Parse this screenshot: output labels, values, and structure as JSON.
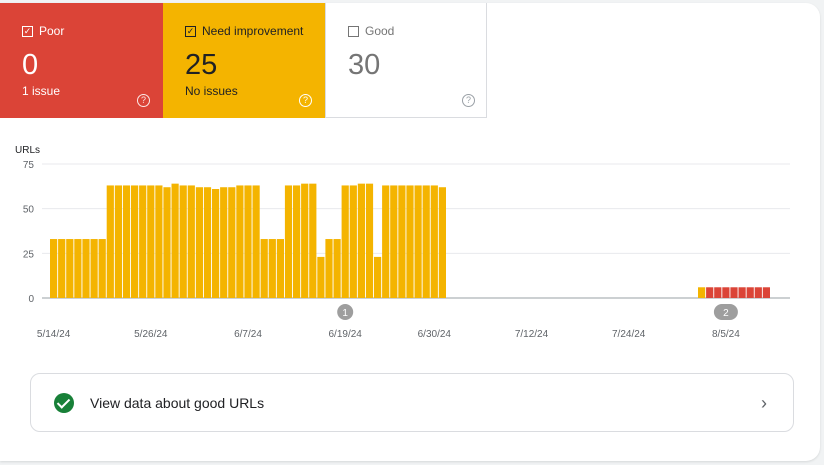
{
  "tiles": {
    "poor": {
      "label": "Poor",
      "count": "0",
      "sub": "1 issue",
      "checked": true
    },
    "need_improvement": {
      "label": "Need improvement",
      "count": "25",
      "sub": "No issues",
      "checked": true
    },
    "good": {
      "label": "Good",
      "count": "30",
      "sub": "",
      "checked": false
    }
  },
  "colors": {
    "poor": "#db4437",
    "need_improvement": "#f4b400",
    "good": "#ffffff",
    "annotation": "#9e9e9e",
    "good_check": "#188038"
  },
  "chart_data": {
    "type": "bar",
    "ylabel": "URLs",
    "ylim": [
      0,
      75
    ],
    "yticks": [
      0,
      25,
      50,
      75
    ],
    "xticks": [
      "5/14/24",
      "5/26/24",
      "6/7/24",
      "6/19/24",
      "6/30/24",
      "7/12/24",
      "7/24/24",
      "8/5/24"
    ],
    "start_date": "2024-05-14",
    "series": [
      {
        "name": "Need improvement",
        "color": "#f4b400",
        "start": "2024-05-14",
        "values": [
          33,
          33,
          33,
          33,
          33,
          33,
          33,
          63,
          63,
          63,
          63,
          63,
          63,
          63,
          62,
          64,
          63,
          63,
          62,
          62,
          61,
          62,
          62,
          63,
          63,
          63,
          33,
          33,
          33,
          63,
          63,
          64,
          64,
          23,
          33,
          33,
          63,
          63,
          64,
          64,
          23,
          63,
          63,
          63,
          63,
          63,
          63,
          63,
          62
        ]
      },
      {
        "name": "Need improvement",
        "color": "#f4b400",
        "start": "2024-08-02",
        "values": [
          6
        ]
      },
      {
        "name": "Poor",
        "color": "#db4437",
        "start": "2024-08-03",
        "values": [
          6,
          6,
          6,
          6,
          6,
          6,
          6,
          6
        ]
      }
    ],
    "annotations": [
      {
        "date": "2024-06-19",
        "label": "1"
      },
      {
        "date": "2024-08-05",
        "label": "2"
      }
    ]
  },
  "link": {
    "label": "View data about good URLs",
    "icon": "check-circle-icon",
    "chevron": "›"
  }
}
